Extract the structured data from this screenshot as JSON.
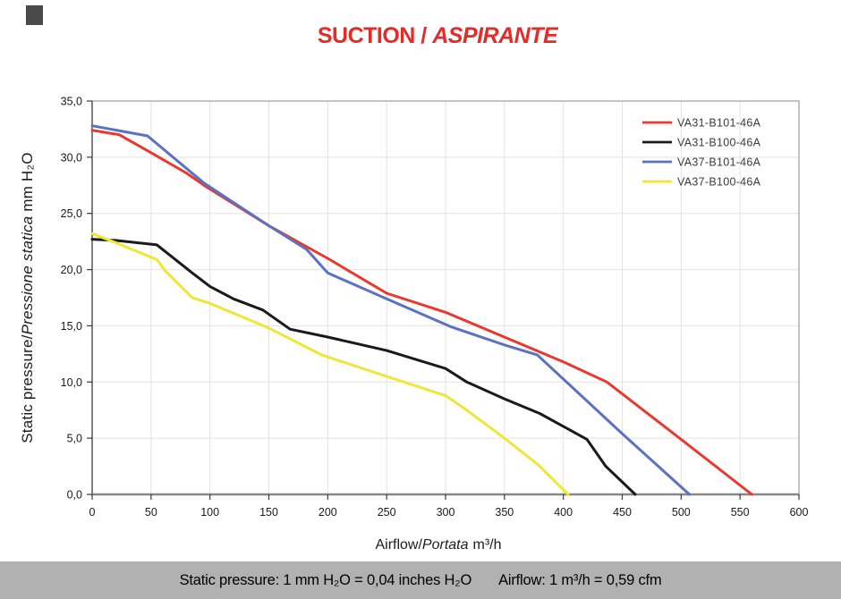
{
  "title": {
    "main": "SUCTION /",
    "italic": "ASPIRANTE",
    "color": "#e52b28"
  },
  "footer": {
    "pressure_note": "Static pressure: 1 mm H₂O = 0,04 inches H₂O",
    "airflow_note": "Airflow: 1 m³/h = 0,59 cfm",
    "bar_color": "#b1b1b1"
  },
  "chart_data": {
    "type": "line",
    "title": "SUCTION / ASPIRANTE",
    "xlabel": {
      "normal1": "Airflow/",
      "italic": "Portata",
      "normal2": "m³/h"
    },
    "ylabel": {
      "normal1": "Static pressure/",
      "italic": "Pressione statica",
      "normal2": " mm H₂O"
    },
    "xlim": [
      0,
      600
    ],
    "ylim": [
      0,
      35
    ],
    "grid": true,
    "legend_position": "top-right",
    "x_ticks": [
      0,
      50,
      100,
      150,
      200,
      250,
      300,
      350,
      400,
      450,
      500,
      550,
      600
    ],
    "x_tick_labels": [
      "0",
      "50",
      "100",
      "150",
      "200",
      "250",
      "300",
      "350",
      "400",
      "450",
      "500",
      "550",
      "600"
    ],
    "y_ticks": [
      0,
      5,
      10,
      15,
      20,
      25,
      30,
      35
    ],
    "y_tick_labels": [
      "0,0",
      "5,0",
      "10,0",
      "15,0",
      "20,0",
      "25,0",
      "30,0",
      "35,0"
    ],
    "colors": {
      "grid": "#e2e2e2",
      "frame": "#9c9c9c",
      "x_axis_line": "#878787",
      "y_axis_line": "#3a3a3a",
      "tick_label": "#1a1a1a",
      "legend_text": "#3b3b3b"
    },
    "series": [
      {
        "name": "VA31-B101-46A",
        "color": "#e8392f",
        "points": [
          [
            0,
            32.4
          ],
          [
            23,
            32.0
          ],
          [
            50,
            30.4
          ],
          [
            80,
            28.6
          ],
          [
            95,
            27.5
          ],
          [
            150,
            23.9
          ],
          [
            200,
            21.0
          ],
          [
            250,
            17.9
          ],
          [
            300,
            16.2
          ],
          [
            350,
            14.0
          ],
          [
            400,
            11.8
          ],
          [
            437,
            10.0
          ],
          [
            500,
            4.9
          ],
          [
            560,
            0
          ]
        ]
      },
      {
        "name": "VA31-B100-46A",
        "color": "#1a1a1a",
        "points": [
          [
            0,
            22.7
          ],
          [
            20,
            22.6
          ],
          [
            55,
            22.2
          ],
          [
            85,
            19.7
          ],
          [
            100,
            18.5
          ],
          [
            120,
            17.4
          ],
          [
            145,
            16.4
          ],
          [
            168,
            14.7
          ],
          [
            200,
            14.0
          ],
          [
            250,
            12.8
          ],
          [
            300,
            11.2
          ],
          [
            318,
            10.0
          ],
          [
            350,
            8.5
          ],
          [
            380,
            7.2
          ],
          [
            420,
            4.9
          ],
          [
            436,
            2.5
          ],
          [
            461,
            0
          ]
        ]
      },
      {
        "name": "VA37-B101-46A",
        "color": "#5b72c0",
        "points": [
          [
            0,
            32.8
          ],
          [
            47,
            31.9
          ],
          [
            95,
            27.7
          ],
          [
            150,
            23.9
          ],
          [
            182,
            21.8
          ],
          [
            200,
            19.7
          ],
          [
            250,
            17.4
          ],
          [
            305,
            14.9
          ],
          [
            350,
            13.3
          ],
          [
            378,
            12.4
          ],
          [
            450,
            5.4
          ],
          [
            507,
            0
          ]
        ]
      },
      {
        "name": "VA37-B100-46A",
        "color": "#efe636",
        "points": [
          [
            0,
            23.2
          ],
          [
            20,
            22.4
          ],
          [
            55,
            20.9
          ],
          [
            62,
            19.9
          ],
          [
            85,
            17.5
          ],
          [
            100,
            17.0
          ],
          [
            150,
            14.8
          ],
          [
            195,
            12.4
          ],
          [
            250,
            10.5
          ],
          [
            300,
            8.8
          ],
          [
            318,
            7.5
          ],
          [
            350,
            5.0
          ],
          [
            378,
            2.7
          ],
          [
            404,
            0
          ]
        ]
      }
    ]
  }
}
